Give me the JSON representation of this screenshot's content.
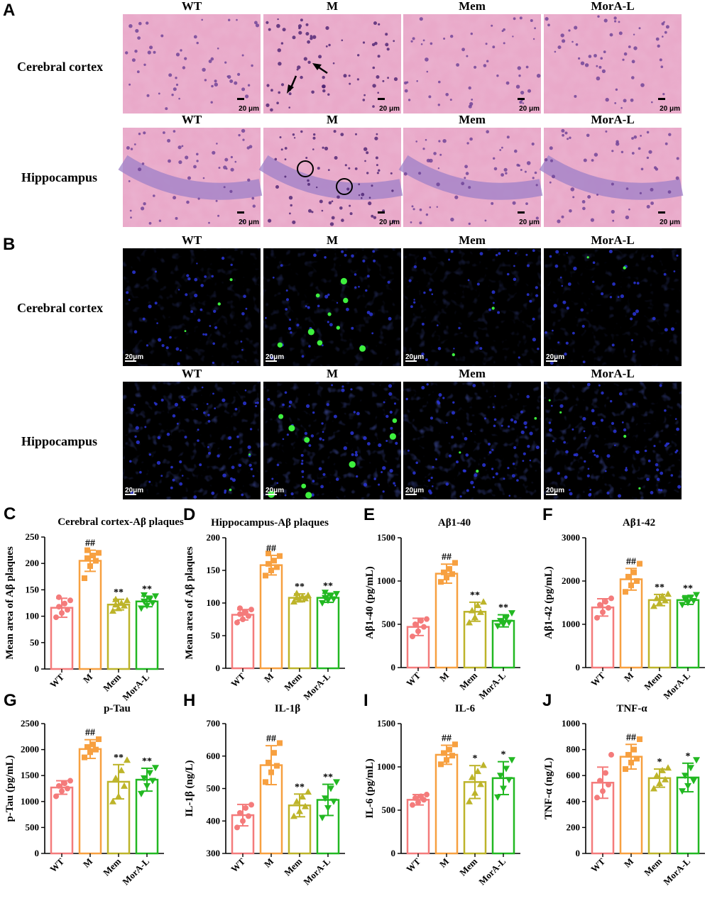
{
  "panel_labels": [
    "A",
    "B",
    "C",
    "D",
    "E",
    "F",
    "G",
    "H",
    "I",
    "J"
  ],
  "groups": [
    "WT",
    "M",
    "Mem",
    "MorA-L"
  ],
  "group_colors": [
    "#f47b7b",
    "#f7a040",
    "#bdb42a",
    "#22b822"
  ],
  "micrographs": {
    "he": {
      "rows": [
        "Cerebral cortex",
        "Hippocampus"
      ],
      "columns": [
        "WT",
        "M",
        "Mem",
        "MorA-L"
      ],
      "scale_bar": "20 μm"
    },
    "if": {
      "rows": [
        "Cerebral cortex",
        "Hippocampus"
      ],
      "columns": [
        "WT",
        "M",
        "Mem",
        "MorA-L"
      ],
      "scale_bar": "20μm"
    }
  },
  "chart_data": [
    {
      "panel": "C",
      "type": "bar",
      "title": "Cerebral cortex-Aβ plaques",
      "ylabel": "Mean area of Aβ plaques",
      "ylim": [
        0,
        250
      ],
      "yticks": [
        0,
        50,
        100,
        150,
        200,
        250
      ],
      "categories": [
        "WT",
        "M",
        "Mem",
        "MorA-L"
      ],
      "values": [
        116,
        205,
        122,
        128
      ],
      "errors": [
        18,
        20,
        10,
        10
      ],
      "points": [
        [
          98,
          106,
          112,
          118,
          124,
          130,
          136
        ],
        [
          172,
          195,
          205,
          210,
          215,
          220,
          225
        ],
        [
          110,
          115,
          120,
          122,
          125,
          130,
          132
        ],
        [
          115,
          120,
          125,
          128,
          132,
          138,
          140
        ]
      ],
      "markers": [
        "circle",
        "square",
        "triangle-up",
        "triangle-down"
      ],
      "annotations": [
        "",
        "##",
        "**",
        "**"
      ]
    },
    {
      "panel": "D",
      "type": "bar",
      "title": "Hippocampus-Aβ plaques",
      "ylabel": "Mean area of Aβ plaques",
      "ylim": [
        0,
        200
      ],
      "yticks": [
        0,
        50,
        100,
        150,
        200
      ],
      "categories": [
        "WT",
        "M",
        "Mem",
        "MorA-L"
      ],
      "values": [
        82,
        158,
        108,
        108
      ],
      "errors": [
        8,
        15,
        6,
        7
      ],
      "points": [
        [
          70,
          75,
          80,
          83,
          86,
          90,
          92
        ],
        [
          142,
          150,
          155,
          160,
          165,
          172,
          176
        ],
        [
          102,
          105,
          107,
          108,
          110,
          112,
          115
        ],
        [
          100,
          104,
          106,
          108,
          111,
          114,
          116
        ]
      ],
      "markers": [
        "circle",
        "square",
        "triangle-up",
        "triangle-down"
      ],
      "annotations": [
        "",
        "##",
        "**",
        "**"
      ]
    },
    {
      "panel": "E",
      "type": "bar",
      "title": "Aβ1-40",
      "ylabel": "Aβ1-40 (pg/mL)",
      "ylim": [
        0,
        1500
      ],
      "yticks": [
        0,
        500,
        1000,
        1500
      ],
      "categories": [
        "WT",
        "M",
        "Mem",
        "MorA-L"
      ],
      "values": [
        470,
        1085,
        645,
        540
      ],
      "errors": [
        100,
        110,
        110,
        70
      ],
      "points": [
        [
          360,
          420,
          470,
          500,
          540,
          560
        ],
        [
          990,
          1040,
          1080,
          1100,
          1140,
          1210
        ],
        [
          520,
          580,
          640,
          660,
          720,
          760
        ],
        [
          480,
          500,
          520,
          540,
          570,
          630
        ]
      ],
      "markers": [
        "circle",
        "square",
        "triangle-up",
        "triangle-down"
      ],
      "annotations": [
        "",
        "##",
        "**",
        "**"
      ]
    },
    {
      "panel": "F",
      "type": "bar",
      "title": "Aβ1-42",
      "ylabel": "Aβ1-42 (pg/mL)",
      "ylim": [
        0,
        3000
      ],
      "yticks": [
        0,
        1000,
        2000,
        3000
      ],
      "categories": [
        "WT",
        "M",
        "Mem",
        "MorA-L"
      ],
      "values": [
        1390,
        2040,
        1560,
        1560
      ],
      "errors": [
        200,
        250,
        130,
        100
      ],
      "points": [
        [
          1150,
          1280,
          1380,
          1450,
          1520,
          1600
        ],
        [
          1750,
          1900,
          2000,
          2100,
          2200,
          2400
        ],
        [
          1420,
          1500,
          1550,
          1600,
          1650,
          1700
        ],
        [
          1450,
          1500,
          1540,
          1580,
          1620,
          1680
        ]
      ],
      "markers": [
        "circle",
        "square",
        "triangle-up",
        "triangle-down"
      ],
      "annotations": [
        "",
        "##",
        "**",
        "**"
      ]
    },
    {
      "panel": "G",
      "type": "bar",
      "title": "p-Tau",
      "ylabel": "p-Tau (pg/mL)",
      "ylim": [
        0,
        2500
      ],
      "yticks": [
        0,
        500,
        1000,
        1500,
        2000,
        2500
      ],
      "categories": [
        "WT",
        "M",
        "Mem",
        "MorA-L"
      ],
      "values": [
        1270,
        2010,
        1380,
        1420
      ],
      "errors": [
        130,
        180,
        330,
        220
      ],
      "points": [
        [
          1100,
          1200,
          1250,
          1300,
          1350,
          1400
        ],
        [
          1850,
          1950,
          2000,
          2050,
          2100,
          2200
        ],
        [
          1000,
          1100,
          1300,
          1450,
          1600,
          1800
        ],
        [
          1150,
          1300,
          1400,
          1450,
          1550,
          1650
        ]
      ],
      "markers": [
        "circle",
        "square",
        "triangle-up",
        "triangle-down"
      ],
      "annotations": [
        "",
        "##",
        "**",
        "**"
      ]
    },
    {
      "panel": "H",
      "type": "bar",
      "title": "IL-1β",
      "ylabel": "IL-1β (ng/L)",
      "ylim": [
        300,
        700
      ],
      "yticks": [
        300,
        400,
        500,
        600,
        700
      ],
      "categories": [
        "WT",
        "M",
        "Mem",
        "MorA-L"
      ],
      "values": [
        418,
        572,
        448,
        465
      ],
      "errors": [
        33,
        60,
        35,
        48
      ],
      "points": [
        [
          380,
          400,
          415,
          425,
          440,
          450
        ],
        [
          520,
          550,
          570,
          580,
          610,
          640
        ],
        [
          415,
          430,
          445,
          460,
          475,
          490
        ],
        [
          410,
          440,
          460,
          470,
          500,
          520
        ]
      ],
      "markers": [
        "circle",
        "square",
        "triangle-up",
        "triangle-down"
      ],
      "annotations": [
        "",
        "##",
        "**",
        "**"
      ]
    },
    {
      "panel": "I",
      "type": "bar",
      "title": "IL-6",
      "ylabel": "IL-6 (pg/mL)",
      "ylim": [
        0,
        1500
      ],
      "yticks": [
        0,
        500,
        1000,
        1500
      ],
      "categories": [
        "WT",
        "M",
        "Mem",
        "MorA-L"
      ],
      "values": [
        620,
        1140,
        825,
        870
      ],
      "errors": [
        60,
        110,
        190,
        190
      ],
      "points": [
        [
          560,
          590,
          620,
          640,
          660,
          680
        ],
        [
          1030,
          1080,
          1130,
          1160,
          1200,
          1260
        ],
        [
          600,
          700,
          800,
          880,
          950,
          1020
        ],
        [
          650,
          750,
          850,
          900,
          980,
          1080
        ]
      ],
      "markers": [
        "circle",
        "square",
        "triangle-up",
        "triangle-down"
      ],
      "annotations": [
        "",
        "##",
        "*",
        "*"
      ]
    },
    {
      "panel": "J",
      "type": "bar",
      "title": "TNF-α",
      "ylabel": "TNF-α (ng/L)",
      "ylim": [
        0,
        1000
      ],
      "yticks": [
        0,
        200,
        400,
        600,
        800,
        1000
      ],
      "categories": [
        "WT",
        "M",
        "Mem",
        "MorA-L"
      ],
      "values": [
        545,
        745,
        580,
        585
      ],
      "errors": [
        120,
        95,
        70,
        110
      ],
      "points": [
        [
          430,
          480,
          530,
          560,
          620,
          760
        ],
        [
          650,
          700,
          730,
          760,
          800,
          880
        ],
        [
          500,
          540,
          570,
          600,
          640,
          660
        ],
        [
          480,
          520,
          560,
          600,
          660,
          720
        ]
      ],
      "markers": [
        "circle",
        "square",
        "triangle-up",
        "triangle-down"
      ],
      "annotations": [
        "",
        "##",
        "*",
        "*"
      ]
    }
  ]
}
